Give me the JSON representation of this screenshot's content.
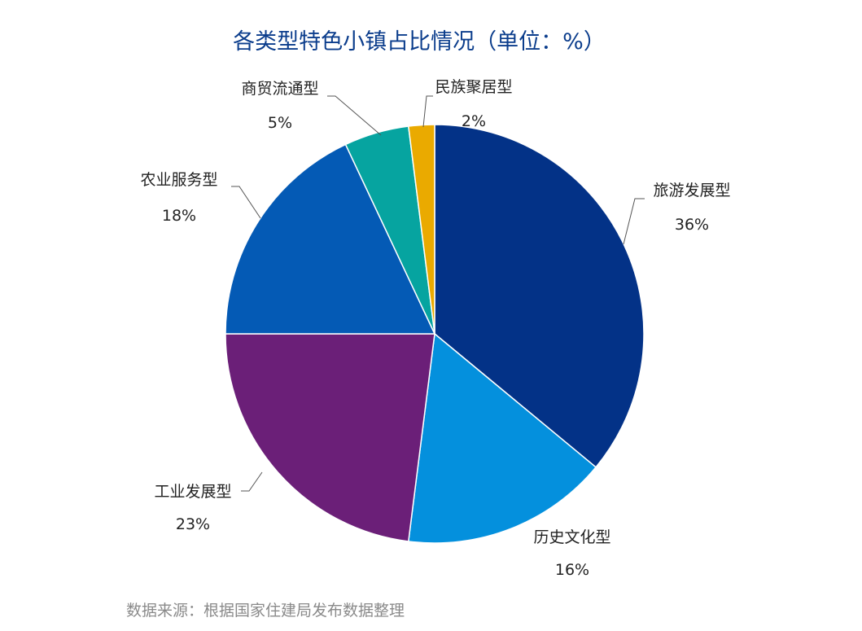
{
  "chart_data": {
    "type": "pie",
    "title": "各类型特色小镇占比情况（单位：%）",
    "source": "数据来源：根据国家住建局发布数据整理",
    "slices": [
      {
        "label": "旅游发展型",
        "value": 36,
        "value_label": "36%",
        "color": "#033287"
      },
      {
        "label": "历史文化型",
        "value": 16,
        "value_label": "16%",
        "color": "#0490dd"
      },
      {
        "label": "工业发展型",
        "value": 23,
        "value_label": "23%",
        "color": "#6b1f78"
      },
      {
        "label": "农业服务型",
        "value": 18,
        "value_label": "18%",
        "color": "#045ab5"
      },
      {
        "label": "商贸流通型",
        "value": 5,
        "value_label": "5%",
        "color": "#06a4a0"
      },
      {
        "label": "民族聚居型",
        "value": 2,
        "value_label": "2%",
        "color": "#eaaa00"
      }
    ]
  }
}
